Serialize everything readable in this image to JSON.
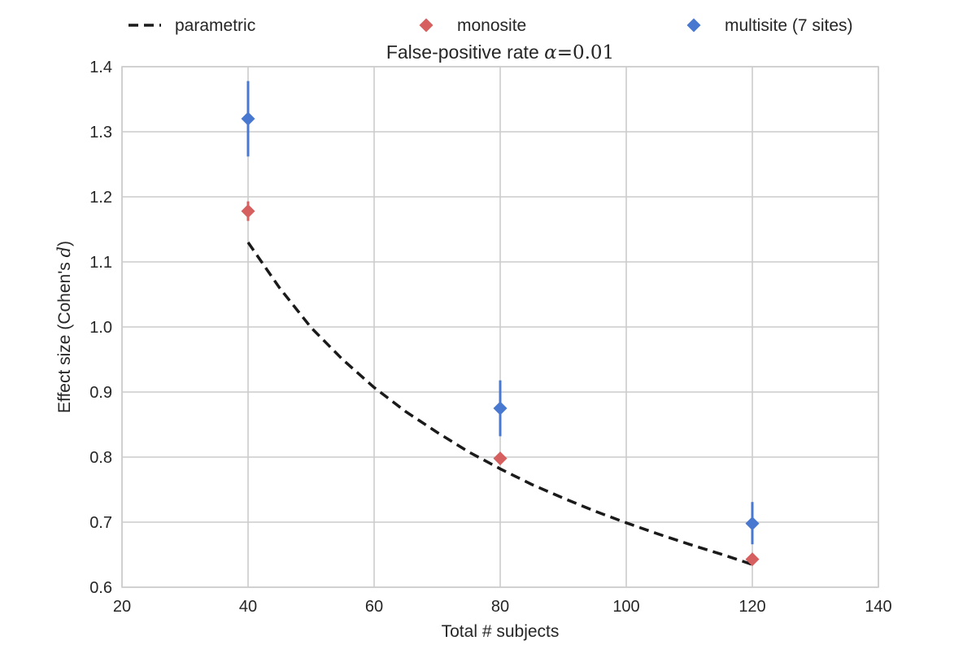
{
  "chart_data": {
    "type": "scatter",
    "title_prefix": "False-positive rate ",
    "title_math_symbol": "α",
    "title_math_value": "=0.01",
    "xlabel": "Total # subjects",
    "ylabel_prefix": "Effect size (Cohen's ",
    "ylabel_math": "d",
    "ylabel_suffix": ")",
    "xlim": [
      20,
      140
    ],
    "ylim": [
      0.6,
      1.4
    ],
    "x_ticks": [
      "20",
      "40",
      "60",
      "80",
      "100",
      "120",
      "140"
    ],
    "y_ticks": [
      "0.6",
      "0.7",
      "0.8",
      "0.9",
      "1.0",
      "1.1",
      "1.2",
      "1.3",
      "1.4"
    ],
    "grid": true,
    "legend_position": "top, above plot, 3 columns",
    "legend": [
      {
        "label": "parametric",
        "marker": "dashed-line",
        "color": "#1a1a1a"
      },
      {
        "label": "monosite",
        "marker": "diamond",
        "color": "#d65f5f"
      },
      {
        "label": "multisite (7 sites)",
        "marker": "diamond",
        "color": "#4878cf"
      }
    ],
    "series": [
      {
        "name": "parametric",
        "style": "dashed-line",
        "color": "#1a1a1a",
        "x": [
          40,
          45,
          50,
          55,
          60,
          65,
          70,
          75,
          80,
          85,
          90,
          95,
          100,
          105,
          110,
          115,
          120
        ],
        "y": [
          1.13,
          1.06,
          0.999,
          0.95,
          0.907,
          0.87,
          0.838,
          0.808,
          0.782,
          0.758,
          0.737,
          0.717,
          0.699,
          0.682,
          0.666,
          0.651,
          0.635
        ]
      },
      {
        "name": "monosite",
        "style": "diamond",
        "color": "#d65f5f",
        "x": [
          40,
          80,
          120
        ],
        "y": [
          1.178,
          0.798,
          0.643
        ],
        "err_low": [
          1.163,
          0.795,
          0.64
        ],
        "err_high": [
          1.193,
          0.801,
          0.646
        ]
      },
      {
        "name": "multisite (7 sites)",
        "style": "diamond",
        "color": "#4878cf",
        "x": [
          40,
          80,
          120
        ],
        "y": [
          1.32,
          0.875,
          0.698
        ],
        "err_low": [
          1.262,
          0.832,
          0.666
        ],
        "err_high": [
          1.378,
          0.918,
          0.731
        ]
      }
    ]
  }
}
